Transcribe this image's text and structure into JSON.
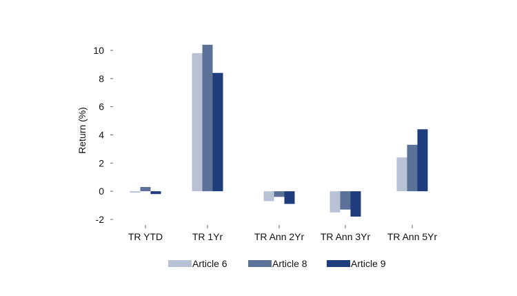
{
  "chart_data": {
    "type": "bar",
    "title": "",
    "xlabel": "",
    "ylabel": "Return (%)",
    "ylim": [
      -2,
      10
    ],
    "yticks": [
      10,
      8,
      6,
      4,
      2,
      0,
      -2
    ],
    "categories": [
      "TR YTD",
      "TR 1Yr",
      "TR Ann 2Yr",
      "TR Ann 3Yr",
      "TR Ann 5Yr"
    ],
    "series": [
      {
        "name": "Article 6",
        "color": "#b9c1d4",
        "values": [
          -0.1,
          9.8,
          -0.7,
          -1.5,
          2.4
        ]
      },
      {
        "name": "Article 8",
        "color": "#5b7198",
        "values": [
          0.3,
          10.4,
          -0.4,
          -1.3,
          3.3
        ]
      },
      {
        "name": "Article 9",
        "color": "#1f3c7c",
        "values": [
          -0.2,
          8.4,
          -0.9,
          -1.8,
          4.4
        ]
      }
    ],
    "legend_position": "bottom",
    "grid": false
  }
}
